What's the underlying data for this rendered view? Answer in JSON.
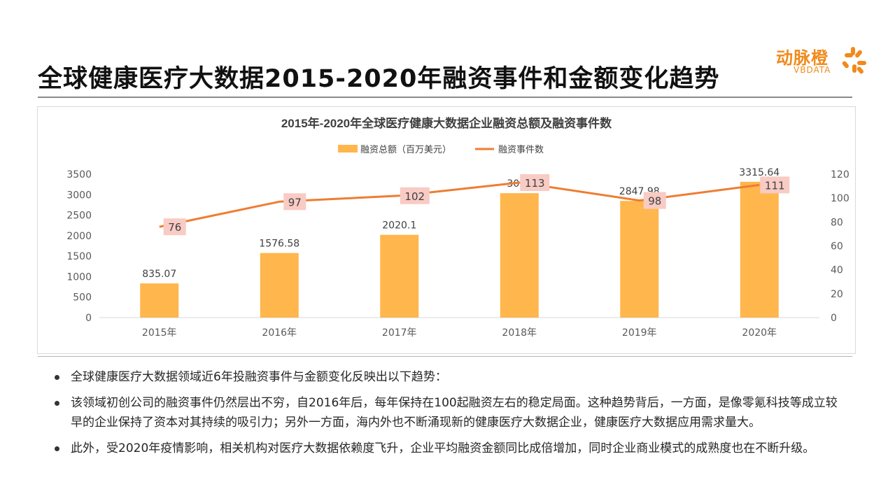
{
  "page": {
    "title": "全球健康医疗大数据2015-2020年融资事件和金额变化趋势"
  },
  "logo": {
    "name_cn": "动脉橙",
    "name_en": "VBDATA",
    "icon": "orange-petal-logo-icon",
    "color": "#f08a1c"
  },
  "chart_data": {
    "type": "bar",
    "title": "2015年-2020年全球医疗健康大数据企业融资总额及融资事件数",
    "categories": [
      "2015年",
      "2016年",
      "2017年",
      "2018年",
      "2019年",
      "2020年"
    ],
    "series": [
      {
        "name": "融资总额（百万美元）",
        "type": "bar",
        "axis": "left",
        "color": "#ffb64d",
        "values": [
          835.07,
          1576.58,
          2020.1,
          3037,
          2847.98,
          3315.64
        ],
        "labels": [
          "835.07",
          "1576.58",
          "2020.1",
          "3037",
          "2847.98",
          "3315.64"
        ]
      },
      {
        "name": "融资事件数",
        "type": "line",
        "axis": "right",
        "color": "#ee7d31",
        "values": [
          76,
          97,
          102,
          113,
          98,
          111
        ],
        "labels": [
          "76",
          "97",
          "102",
          "113",
          "98",
          "111"
        ],
        "label_bg": "#f8cbc4"
      }
    ],
    "y_left": {
      "ticks": [
        "0",
        "500",
        "1000",
        "1500",
        "2000",
        "2500",
        "3000",
        "3500"
      ],
      "lim": [
        0,
        3500
      ]
    },
    "y_right": {
      "ticks": [
        "0",
        "20",
        "40",
        "60",
        "80",
        "100",
        "120"
      ],
      "lim": [
        0,
        120
      ]
    },
    "legend_position": "top-center",
    "grid": false
  },
  "bullets": [
    "全球健康医疗大数据领域近6年投融资事件与金额变化反映出以下趋势：",
    "该领域初创公司的融资事件仍然层出不穷，自2016年后，每年保持在100起融资左右的稳定局面。这种趋势背后，一方面，是像零氪科技等成立较早的企业保持了资本对其持续的吸引力；另外一方面，海内外也不断涌现新的健康医疗大数据企业，健康医疗大数据应用需求量大。",
    "此外，受2020年疫情影响，相关机构对医疗大数据依赖度飞升，企业平均融资金额同比成倍增加，同时企业商业模式的成熟度也在不断升级。"
  ]
}
